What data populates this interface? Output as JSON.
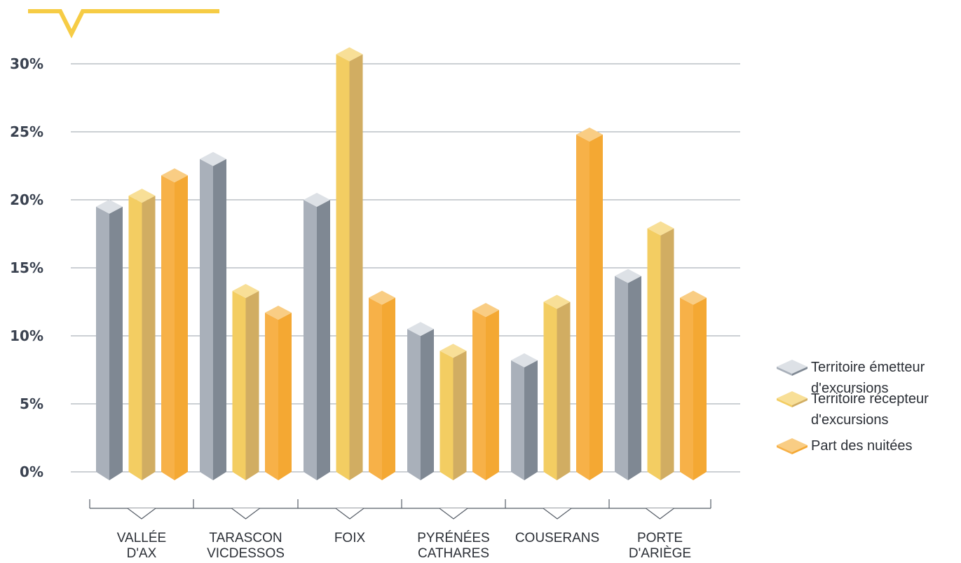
{
  "chart_data": {
    "type": "bar",
    "title": "",
    "xlabel": "",
    "ylabel": "",
    "ylim": [
      0,
      30
    ],
    "yticks": [
      "0%",
      "5%",
      "10%",
      "15%",
      "20%",
      "25%",
      "30%"
    ],
    "grid": true,
    "legend_position": "right",
    "categories": [
      [
        "VALLÉE",
        "D'AX"
      ],
      [
        "TARASCON",
        "VICDESSOS"
      ],
      [
        "FOIX"
      ],
      [
        "PYRÉNÉES",
        "CATHARES"
      ],
      [
        "COUSERANS"
      ],
      [
        "PORTE",
        "D'ARIÈGE"
      ]
    ],
    "series": [
      {
        "name": "Territoire émetteur d'excursions",
        "label_lines": [
          "Territoire émetteur",
          "d'excursions"
        ],
        "values": [
          19.5,
          23.0,
          20.0,
          10.5,
          8.2,
          14.4
        ],
        "colors": {
          "front": "#a9b0ba",
          "side": "#7f8893",
          "top": "#dde1e6"
        }
      },
      {
        "name": "Territoire récepteur d'excursions",
        "label_lines": [
          "Territoire récepteur",
          "d'excursions"
        ],
        "values": [
          20.3,
          13.3,
          30.7,
          8.9,
          12.5,
          17.9
        ],
        "colors": {
          "front": "#f3cd62",
          "side": "#d1ad62",
          "top": "#f8df97"
        }
      },
      {
        "name": "Part des nuitées",
        "label_lines": [
          "Part des nuitées"
        ],
        "values": [
          21.8,
          11.7,
          12.8,
          11.9,
          24.8,
          12.8
        ],
        "colors": {
          "front": "#f7b148",
          "side": "#f4a833",
          "top": "#f9cd84"
        }
      }
    ],
    "colors": {
      "grid": "#9aa0a8",
      "accent": "#f6cc45"
    }
  }
}
